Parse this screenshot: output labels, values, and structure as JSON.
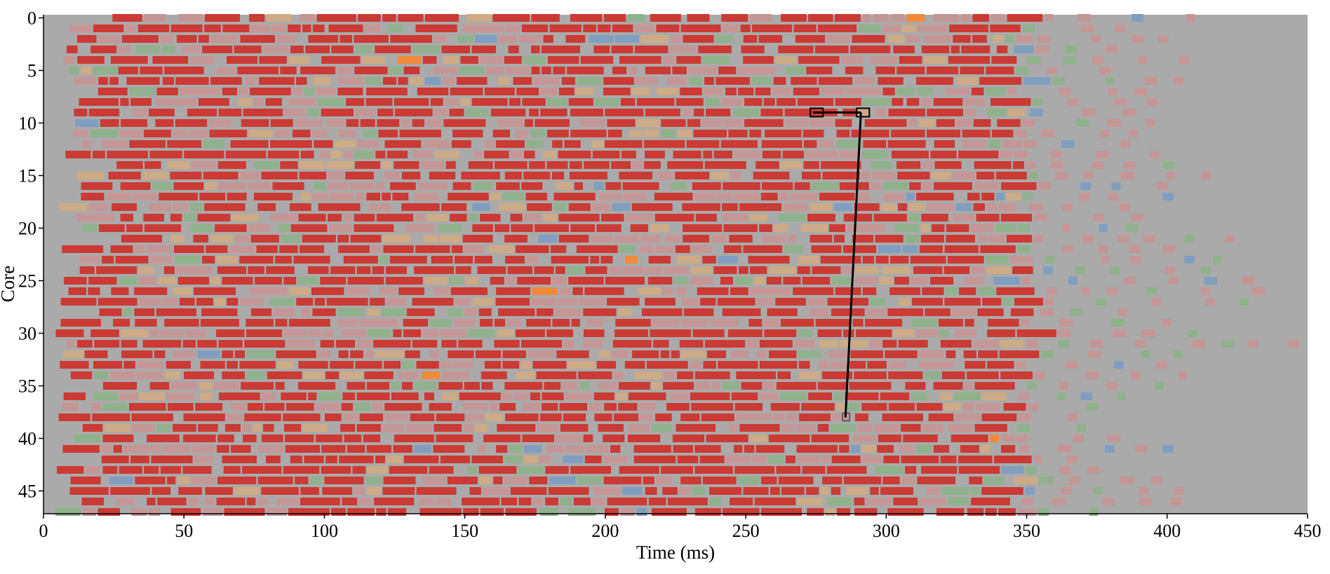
{
  "chart_data": {
    "type": "heatmap",
    "title": "",
    "xlabel": "Time (ms)",
    "ylabel": "Core",
    "xlim": [
      0,
      450
    ],
    "ylim": [
      0,
      47
    ],
    "y_axis_inverted": true,
    "x_ticks": [
      0,
      50,
      100,
      150,
      200,
      250,
      300,
      350,
      400,
      450
    ],
    "y_ticks": [
      0,
      5,
      10,
      15,
      20,
      25,
      30,
      35,
      40,
      45
    ],
    "grid": false,
    "legend": "none",
    "background_color": "#aaaaaa",
    "category_colors": {
      "red": "#cb3a34",
      "rose": "#c59696",
      "tan": "#cdab86",
      "green": "#8fb18b",
      "blue": "#809ebf",
      "orange": "#f08a3b"
    },
    "activity_end_ms_by_core": [
      349,
      345,
      348,
      346,
      347,
      344,
      350,
      343,
      346,
      349,
      347,
      345,
      348,
      344,
      346,
      343,
      345,
      347,
      344,
      342,
      346,
      348,
      344,
      347,
      349,
      345,
      343,
      346,
      348,
      344,
      347,
      345,
      343,
      346,
      344,
      348,
      345,
      347,
      343,
      346,
      344,
      345,
      347,
      343,
      346,
      344,
      345,
      347
    ],
    "tail_end_ms_by_core": [
      410,
      398,
      405,
      392,
      412,
      388,
      415,
      395,
      402,
      400,
      408,
      395,
      385,
      399,
      401,
      415,
      397,
      403,
      392,
      390,
      386,
      430,
      410,
      418,
      425,
      435,
      432,
      430,
      398,
      403,
      417,
      448,
      411,
      400,
      409,
      400,
      395,
      382,
      376,
      378,
      395,
      399,
      376,
      377,
      400,
      421,
      402,
      373
    ],
    "highlight_arrow": {
      "from": {
        "time_ms": 274,
        "core": 9
      },
      "to": {
        "time_ms": 291,
        "core": 9
      },
      "end": {
        "time_ms": 286,
        "core": 38
      }
    }
  }
}
